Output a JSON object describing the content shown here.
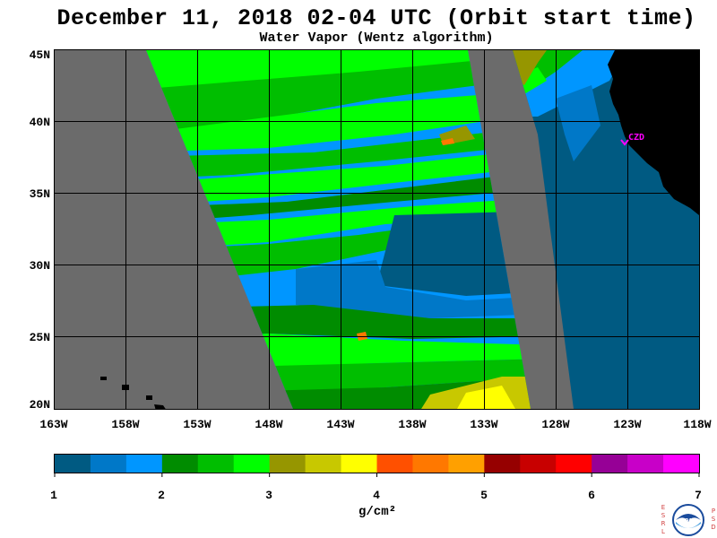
{
  "title": "December 11, 2018  02-04 UTC  (Orbit start time)",
  "subtitle": "Water Vapor (Wentz algorithm)",
  "map": {
    "lat_labels": [
      "45N",
      "40N",
      "35N",
      "30N",
      "25N",
      "20N"
    ],
    "lon_labels": [
      "163W",
      "158W",
      "153W",
      "148W",
      "143W",
      "138W",
      "133W",
      "128W",
      "123W",
      "118W"
    ],
    "station_label": "CZD",
    "colors": {
      "no_data": "#6b6b6b",
      "land": "#000000",
      "station": "#ff00ff",
      "grid": "#000000"
    }
  },
  "colorbar": {
    "unit": "g/cm²",
    "tick_labels": [
      "1",
      "2",
      "3",
      "4",
      "5",
      "6",
      "7"
    ],
    "colors": [
      "#005a82",
      "#0078c8",
      "#0096ff",
      "#008c00",
      "#00be00",
      "#00ff00",
      "#969600",
      "#c8c800",
      "#ffff00",
      "#ff5000",
      "#ff7800",
      "#ffa000",
      "#960000",
      "#c80000",
      "#ff0000",
      "#960096",
      "#c800c8",
      "#ff00ff"
    ]
  },
  "logo": {
    "left_letters": "ESRL",
    "right_letters": "PSD",
    "name": "NOAA"
  }
}
